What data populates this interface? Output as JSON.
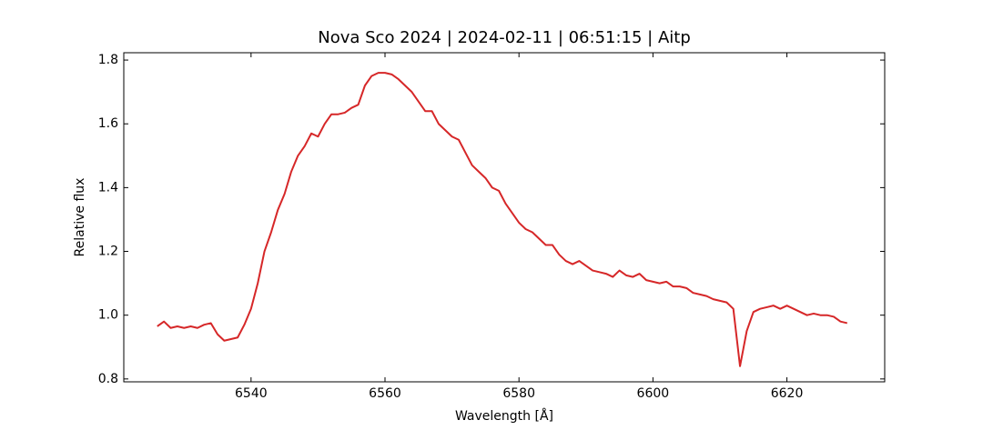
{
  "chart_data": {
    "type": "line",
    "title": "Nova Sco 2024 | 2024-02-11 | 06:51:15 | Aitp",
    "x_label": "Wavelength [Å]",
    "y_label": "Relative flux",
    "xlim": [
      6521,
      6634.6
    ],
    "ylim": [
      0.791,
      1.823
    ],
    "xticks": [
      6540,
      6560,
      6580,
      6600,
      6620
    ],
    "yticks": [
      0.8,
      {
        "value": 1,
        "label": "1.0"
      },
      1.2,
      1.4,
      1.6,
      1.8
    ],
    "series": [
      {
        "color": "#d62728",
        "x": [
          6526,
          6527,
          6528,
          6529,
          6530,
          6531,
          6532,
          6533,
          6534,
          6535,
          6536,
          6537,
          6538,
          6539,
          6540,
          6541,
          6542,
          6543,
          6544,
          6545,
          6546,
          6547,
          6548,
          6549,
          6550,
          6551,
          6552,
          6553,
          6554,
          6555,
          6556,
          6557,
          6558,
          6559,
          6560,
          6561,
          6562,
          6563,
          6564,
          6565,
          6566,
          6567,
          6568,
          6569,
          6570,
          6571,
          6572,
          6573,
          6574,
          6575,
          6576,
          6577,
          6578,
          6579,
          6580,
          6581,
          6582,
          6583,
          6584,
          6585,
          6586,
          6587,
          6588,
          6589,
          6590,
          6591,
          6592,
          6593,
          6594,
          6595,
          6596,
          6597,
          6598,
          6599,
          6600,
          6601,
          6602,
          6603,
          6604,
          6605,
          6606,
          6607,
          6608,
          6609,
          6610,
          6611,
          6612,
          6613,
          6614,
          6615,
          6616,
          6617,
          6618,
          6619,
          6620,
          6621,
          6622,
          6623,
          6624,
          6625,
          6626,
          6627,
          6628,
          6629
        ],
        "values": [
          0.965,
          0.98,
          0.96,
          0.965,
          0.96,
          0.965,
          0.96,
          0.97,
          0.975,
          0.94,
          0.92,
          0.925,
          0.93,
          0.97,
          1.02,
          1.1,
          1.2,
          1.26,
          1.33,
          1.38,
          1.45,
          1.5,
          1.53,
          1.57,
          1.56,
          1.6,
          1.63,
          1.63,
          1.635,
          1.65,
          1.66,
          1.72,
          1.75,
          1.76,
          1.76,
          1.755,
          1.74,
          1.72,
          1.7,
          1.67,
          1.64,
          1.64,
          1.6,
          1.58,
          1.56,
          1.55,
          1.51,
          1.47,
          1.45,
          1.43,
          1.4,
          1.39,
          1.35,
          1.32,
          1.29,
          1.27,
          1.26,
          1.24,
          1.22,
          1.22,
          1.19,
          1.17,
          1.16,
          1.17,
          1.155,
          1.14,
          1.135,
          1.13,
          1.12,
          1.14,
          1.125,
          1.12,
          1.13,
          1.11,
          1.105,
          1.1,
          1.105,
          1.09,
          1.09,
          1.085,
          1.07,
          1.065,
          1.06,
          1.05,
          1.045,
          1.04,
          1.02,
          0.84,
          0.95,
          1.01,
          1.02,
          1.025,
          1.03,
          1.02,
          1.03,
          1.02,
          1.01,
          1.0,
          1.005,
          1.0,
          1.0,
          0.995,
          0.98,
          0.975
        ]
      }
    ]
  }
}
